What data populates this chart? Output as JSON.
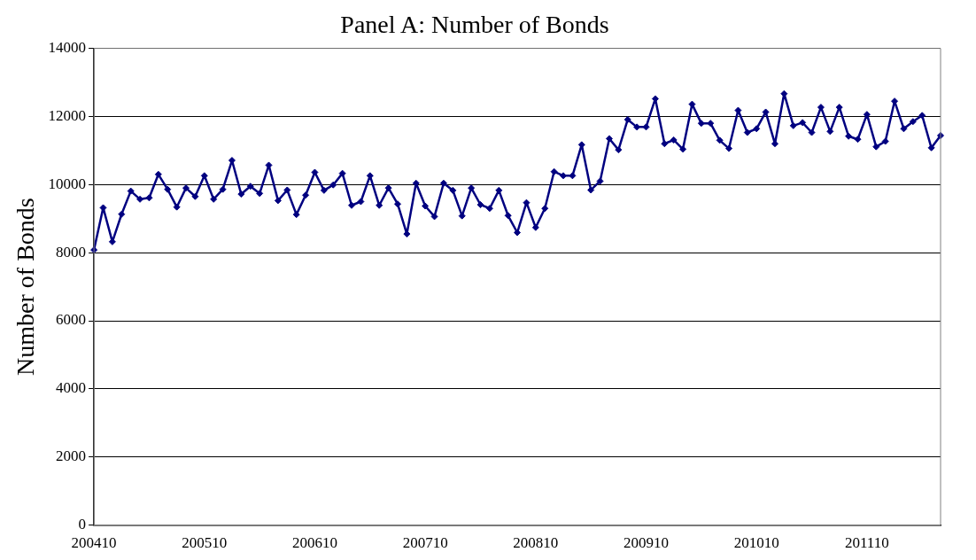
{
  "chart_data": {
    "type": "line",
    "title": "Panel A: Number of Bonds",
    "ylabel": "Number of Bonds",
    "categories": [
      "200410",
      null,
      null,
      null,
      null,
      null,
      null,
      null,
      null,
      null,
      null,
      null,
      "200510",
      null,
      null,
      null,
      null,
      null,
      null,
      null,
      null,
      null,
      null,
      null,
      "200610",
      null,
      null,
      null,
      null,
      null,
      null,
      null,
      null,
      null,
      null,
      null,
      "200710",
      null,
      null,
      null,
      null,
      null,
      null,
      null,
      null,
      null,
      null,
      null,
      "200810",
      null,
      null,
      null,
      null,
      null,
      null,
      null,
      null,
      null,
      null,
      null,
      "200910",
      null,
      null,
      null,
      null,
      null,
      null,
      null,
      null,
      null,
      null,
      null,
      "201010",
      null,
      null,
      null,
      null,
      null,
      null,
      null,
      null,
      null,
      null,
      null,
      "201110",
      null,
      null,
      null,
      null,
      null,
      null,
      null,
      null
    ],
    "series": [
      {
        "color": "#000080",
        "values": [
          8080,
          9320,
          8320,
          9130,
          9810,
          9570,
          9610,
          10300,
          9860,
          9340,
          9900,
          9650,
          10260,
          9570,
          9860,
          10710,
          9720,
          9950,
          9740,
          10570,
          9530,
          9840,
          9120,
          9690,
          10360,
          9830,
          9990,
          10330,
          9390,
          9500,
          10260,
          9390,
          9900,
          9430,
          8550,
          10040,
          9370,
          9060,
          10040,
          9830,
          9080,
          9900,
          9410,
          9300,
          9830,
          9090,
          8590,
          9470,
          8740,
          9300,
          10380,
          10260,
          10260,
          11170,
          9840,
          10100,
          11350,
          11020,
          11910,
          11690,
          11690,
          12520,
          11200,
          11310,
          11040,
          12360,
          11800,
          11800,
          11300,
          11060,
          12180,
          11530,
          11640,
          12130,
          11200,
          12670,
          11730,
          11820,
          11530,
          12270,
          11560,
          12270,
          11420,
          11330,
          12060,
          11110,
          11270,
          12450,
          11640,
          11850,
          12030,
          11080,
          11440
        ]
      }
    ],
    "ylim": [
      0,
      14000
    ],
    "yticks": [
      0,
      2000,
      4000,
      6000,
      8000,
      10000,
      12000,
      14000
    ],
    "grid": "y",
    "legend": false,
    "marker": "diamond",
    "line_style": "solid"
  }
}
